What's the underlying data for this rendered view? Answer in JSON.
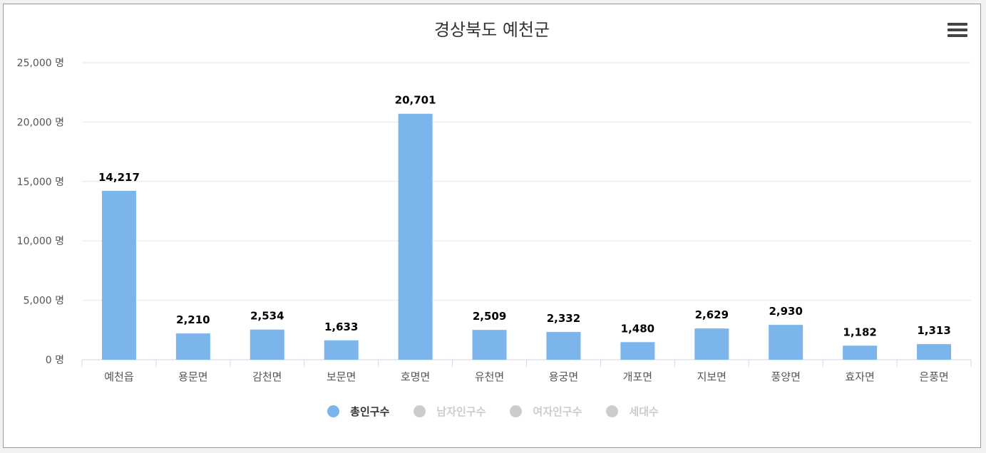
{
  "chart_data": {
    "type": "bar",
    "title": "경상북도 예천군",
    "categories": [
      "예천읍",
      "용문면",
      "감천면",
      "보문면",
      "호명면",
      "유천면",
      "용궁면",
      "개포면",
      "지보면",
      "풍양면",
      "효자면",
      "은풍면"
    ],
    "series": [
      {
        "name": "총인구수",
        "values": [
          14217,
          2210,
          2534,
          1633,
          20701,
          2509,
          2332,
          1480,
          2629,
          2930,
          1182,
          1313
        ]
      }
    ],
    "data_labels": [
      "14,217",
      "2,210",
      "2,534",
      "1,633",
      "20,701",
      "2,509",
      "2,332",
      "1,480",
      "2,629",
      "2,930",
      "1,182",
      "1,313"
    ],
    "ylim": [
      0,
      25000
    ],
    "yticks": [
      0,
      5000,
      10000,
      15000,
      20000,
      25000
    ],
    "ytick_labels": [
      "0 명",
      "5,000 명",
      "10,000 명",
      "15,000 명",
      "20,000 명",
      "25,000 명"
    ],
    "grid": true,
    "legend_position": "bottom-center",
    "xlabel": "",
    "ylabel": ""
  },
  "legend": [
    {
      "label": "총인구수",
      "color": "#7cb5ec",
      "text_color": "#333333",
      "active": true
    },
    {
      "label": "남자인구수",
      "color": "#cccccc",
      "text_color": "#cccccc",
      "active": false
    },
    {
      "label": "여자인구수",
      "color": "#cccccc",
      "text_color": "#cccccc",
      "active": false
    },
    {
      "label": "세대수",
      "color": "#cccccc",
      "text_color": "#cccccc",
      "active": false
    }
  ],
  "colors": {
    "bar": "#7cb5ec",
    "grid": "#e6e6e6",
    "axis": "#ccd6eb",
    "text": "#333333",
    "muted_text": "#555555"
  },
  "menu_icon": "hamburger-menu-icon"
}
